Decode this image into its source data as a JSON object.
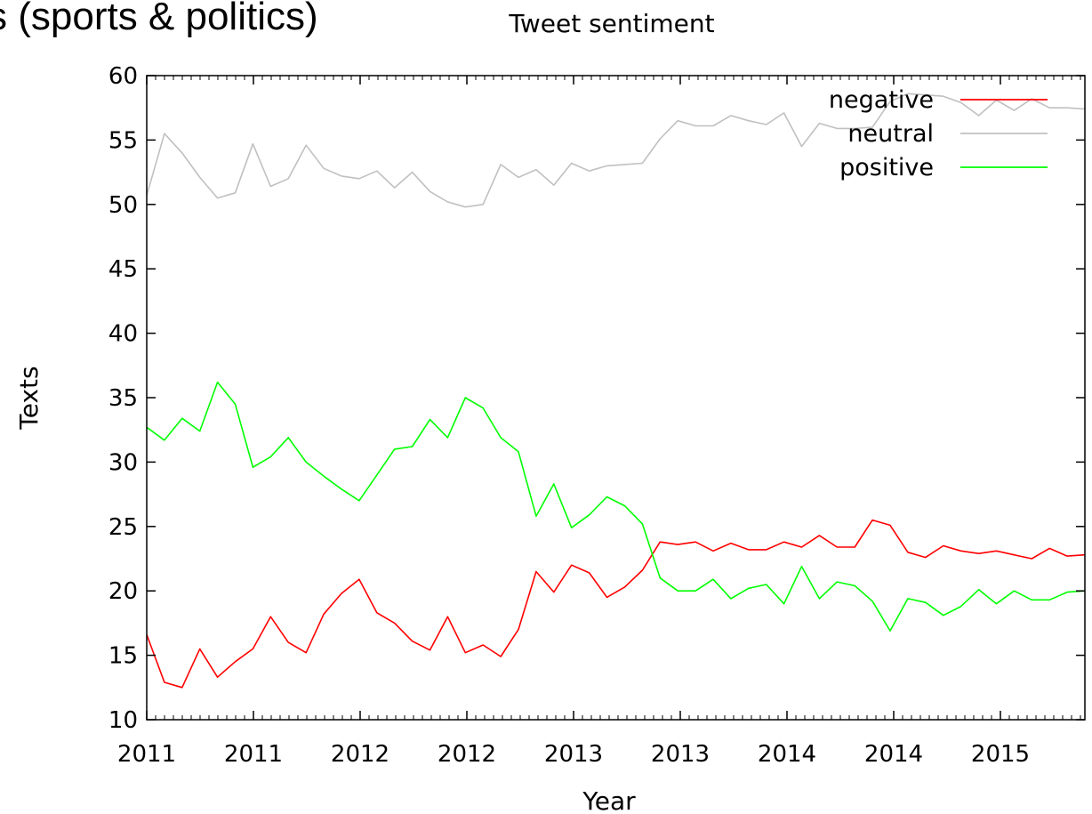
{
  "heading": "s (sports & politics)",
  "chart_data": {
    "type": "line",
    "title": "Tweet sentiment",
    "xlabel": "Year",
    "ylabel": "Texts",
    "ylim": [
      10,
      60
    ],
    "yticks": [
      10,
      15,
      20,
      25,
      30,
      35,
      40,
      45,
      50,
      55,
      60
    ],
    "xtick_labels": [
      "2011",
      "2011",
      "2012",
      "2012",
      "2013",
      "2013",
      "2014",
      "2014",
      "2015"
    ],
    "legend_position": "top-right",
    "grid": false,
    "series": [
      {
        "name": "negative",
        "color": "#ff0000",
        "values": [
          16.6,
          12.9,
          12.5,
          15.5,
          13.3,
          14.5,
          15.5,
          18.0,
          16.0,
          15.2,
          18.2,
          19.8,
          20.9,
          18.3,
          17.5,
          16.1,
          15.4,
          18.0,
          15.2,
          15.8,
          14.9,
          17.0,
          21.5,
          19.9,
          22.0,
          21.4,
          19.5,
          20.3,
          21.6,
          23.8,
          23.6,
          23.8,
          23.1,
          23.7,
          23.2,
          23.2,
          23.8,
          23.4,
          24.3,
          23.4,
          23.4,
          25.5,
          25.1,
          23.0,
          22.6,
          23.5,
          23.1,
          22.9,
          23.1,
          22.8,
          22.5,
          23.3,
          22.7,
          22.8
        ]
      },
      {
        "name": "neutral",
        "color": "#c0c0c0",
        "values": [
          50.7,
          55.5,
          54.0,
          52.1,
          50.5,
          50.9,
          54.7,
          51.4,
          52.0,
          54.6,
          52.8,
          52.2,
          52.0,
          52.6,
          51.3,
          52.5,
          51.0,
          50.2,
          49.8,
          50.0,
          53.1,
          52.1,
          52.7,
          51.5,
          53.2,
          52.6,
          53.0,
          53.1,
          53.2,
          55.1,
          56.5,
          56.1,
          56.1,
          56.9,
          56.5,
          56.2,
          57.1,
          54.5,
          56.3,
          55.9,
          55.9,
          56.0,
          58.0,
          58.6,
          58.5,
          58.4,
          57.9,
          56.9,
          58.1,
          57.3,
          58.2,
          57.5,
          57.5,
          57.4
        ]
      },
      {
        "name": "positive",
        "color": "#00ff00",
        "values": [
          32.7,
          31.7,
          33.4,
          32.4,
          36.2,
          34.5,
          29.6,
          30.4,
          31.9,
          30.0,
          28.9,
          27.9,
          27.0,
          29.0,
          31.0,
          31.2,
          33.3,
          31.9,
          35.0,
          34.2,
          31.9,
          30.8,
          25.8,
          28.3,
          24.9,
          25.9,
          27.3,
          26.6,
          25.2,
          21.0,
          20.0,
          20.0,
          20.9,
          19.4,
          20.2,
          20.5,
          19.0,
          21.9,
          19.4,
          20.7,
          20.4,
          19.2,
          16.9,
          19.4,
          19.1,
          18.1,
          18.8,
          20.1,
          19.0,
          20.0,
          19.3,
          19.3,
          19.9,
          20.0
        ]
      }
    ]
  }
}
